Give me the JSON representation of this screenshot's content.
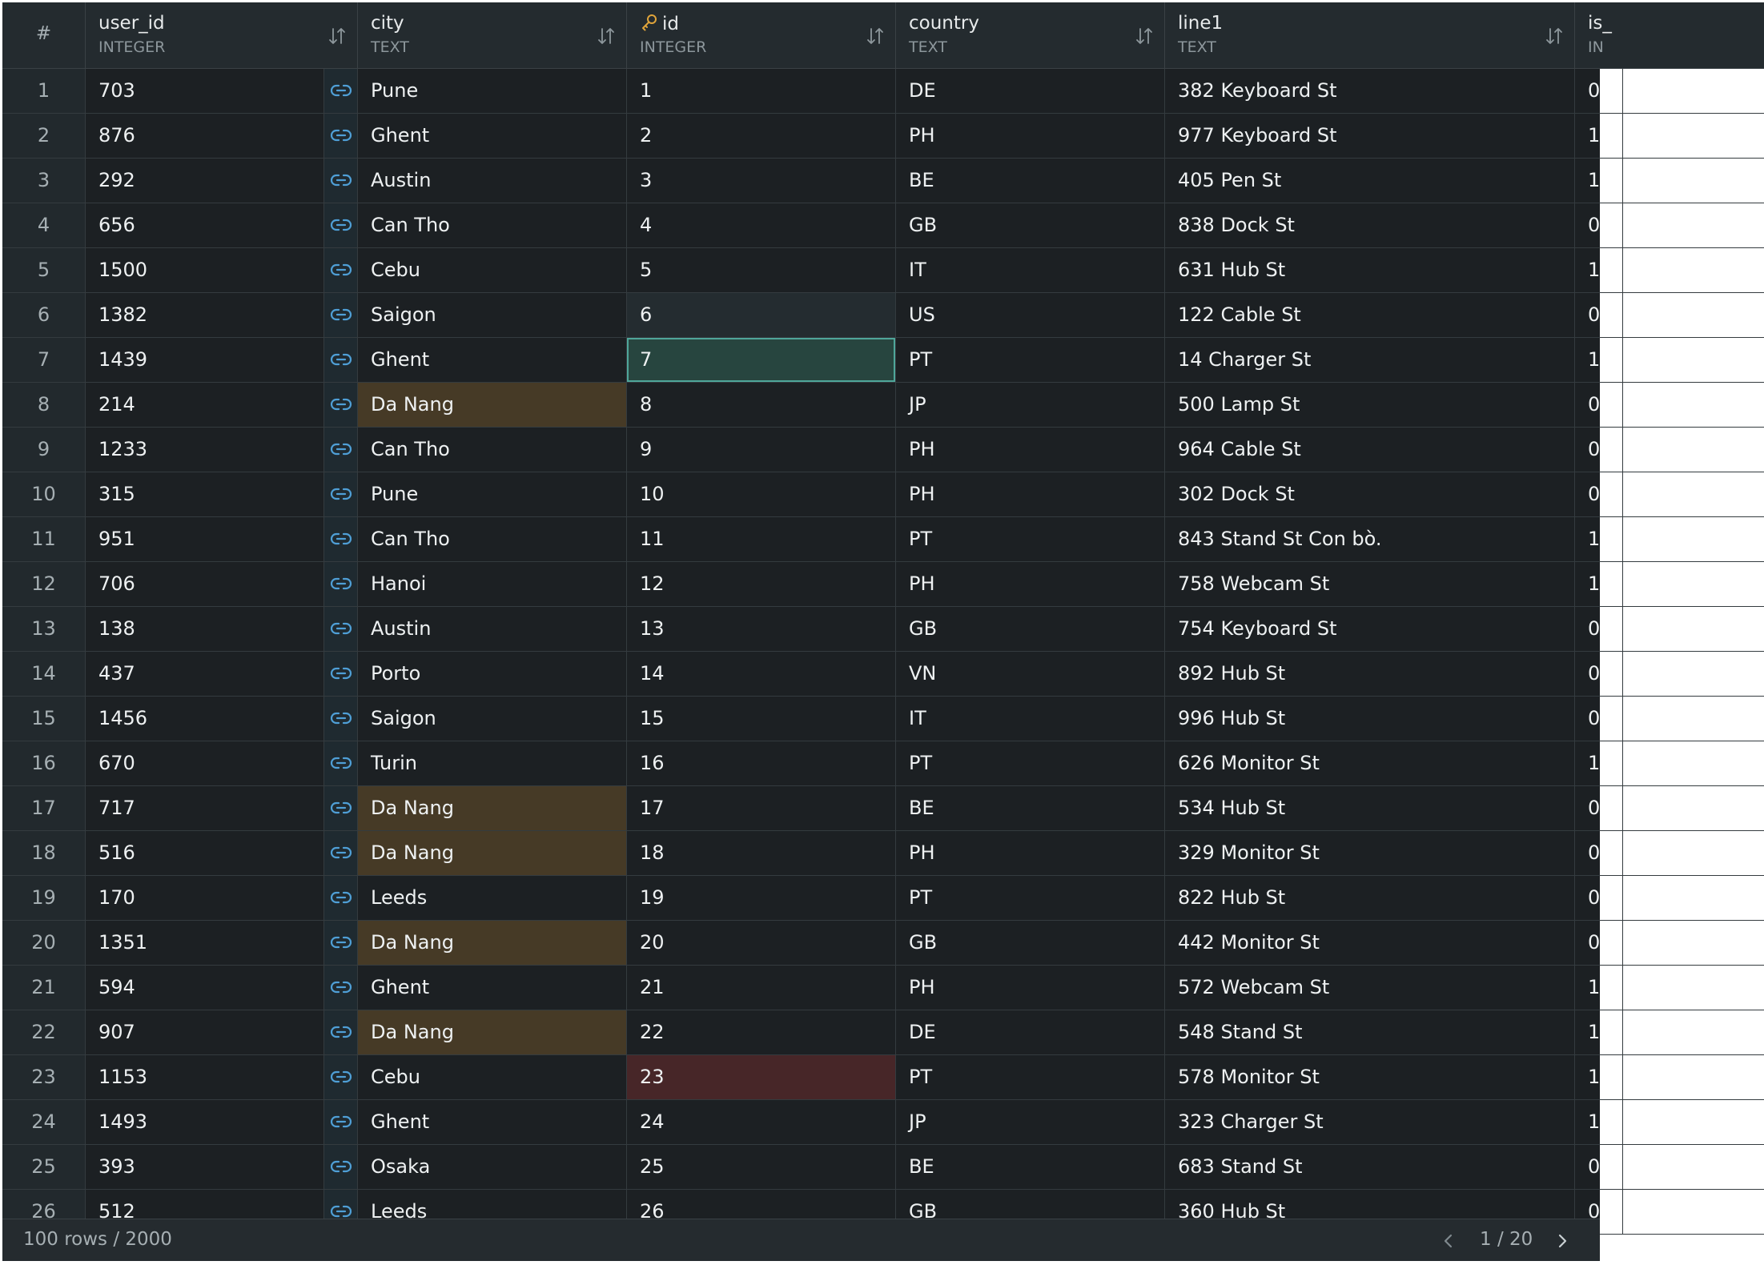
{
  "grid": {
    "row_number_header": "#",
    "columns": [
      {
        "name": "user_id",
        "type": "INTEGER",
        "primary_key": false
      },
      {
        "name": "city",
        "type": "TEXT",
        "primary_key": false
      },
      {
        "name": "id",
        "type": "INTEGER",
        "primary_key": true
      },
      {
        "name": "country",
        "type": "TEXT",
        "primary_key": false
      },
      {
        "name": "line1",
        "type": "TEXT",
        "primary_key": false
      },
      {
        "name": "is_",
        "type": "IN",
        "primary_key": false
      }
    ],
    "rows": [
      {
        "num": "1",
        "user_id": "703",
        "city": "Pune",
        "id": "1",
        "country": "DE",
        "line1": "382 Keyboard St",
        "is": "0"
      },
      {
        "num": "2",
        "user_id": "876",
        "city": "Ghent",
        "id": "2",
        "country": "PH",
        "line1": "977 Keyboard St",
        "is": "1"
      },
      {
        "num": "3",
        "user_id": "292",
        "city": "Austin",
        "id": "3",
        "country": "BE",
        "line1": "405 Pen St",
        "is": "1"
      },
      {
        "num": "4",
        "user_id": "656",
        "city": "Can Tho",
        "id": "4",
        "country": "GB",
        "line1": "838 Dock St",
        "is": "0"
      },
      {
        "num": "5",
        "user_id": "1500",
        "city": "Cebu",
        "id": "5",
        "country": "IT",
        "line1": "631 Hub St",
        "is": "1"
      },
      {
        "num": "6",
        "user_id": "1382",
        "city": "Saigon",
        "id": "6",
        "country": "US",
        "line1": "122 Cable St",
        "is": "0"
      },
      {
        "num": "7",
        "user_id": "1439",
        "city": "Ghent",
        "id": "7",
        "country": "PT",
        "line1": "14 Charger St",
        "is": "1"
      },
      {
        "num": "8",
        "user_id": "214",
        "city": "Da Nang",
        "id": "8",
        "country": "JP",
        "line1": "500 Lamp St",
        "is": "0"
      },
      {
        "num": "9",
        "user_id": "1233",
        "city": "Can Tho",
        "id": "9",
        "country": "PH",
        "line1": "964 Cable St",
        "is": "0"
      },
      {
        "num": "10",
        "user_id": "315",
        "city": "Pune",
        "id": "10",
        "country": "PH",
        "line1": "302 Dock St",
        "is": "0"
      },
      {
        "num": "11",
        "user_id": "951",
        "city": "Can Tho",
        "id": "11",
        "country": "PT",
        "line1": "843 Stand St Con bò.",
        "is": "1"
      },
      {
        "num": "12",
        "user_id": "706",
        "city": "Hanoi",
        "id": "12",
        "country": "PH",
        "line1": "758 Webcam St",
        "is": "1"
      },
      {
        "num": "13",
        "user_id": "138",
        "city": "Austin",
        "id": "13",
        "country": "GB",
        "line1": "754 Keyboard St",
        "is": "0"
      },
      {
        "num": "14",
        "user_id": "437",
        "city": "Porto",
        "id": "14",
        "country": "VN",
        "line1": "892 Hub St",
        "is": "0"
      },
      {
        "num": "15",
        "user_id": "1456",
        "city": "Saigon",
        "id": "15",
        "country": "IT",
        "line1": "996 Hub St",
        "is": "0"
      },
      {
        "num": "16",
        "user_id": "670",
        "city": "Turin",
        "id": "16",
        "country": "PT",
        "line1": "626 Monitor St",
        "is": "1"
      },
      {
        "num": "17",
        "user_id": "717",
        "city": "Da Nang",
        "id": "17",
        "country": "BE",
        "line1": "534 Hub St",
        "is": "0"
      },
      {
        "num": "18",
        "user_id": "516",
        "city": "Da Nang",
        "id": "18",
        "country": "PH",
        "line1": "329 Monitor St",
        "is": "0"
      },
      {
        "num": "19",
        "user_id": "170",
        "city": "Leeds",
        "id": "19",
        "country": "PT",
        "line1": "822 Hub St",
        "is": "0"
      },
      {
        "num": "20",
        "user_id": "1351",
        "city": "Da Nang",
        "id": "20",
        "country": "GB",
        "line1": "442 Monitor St",
        "is": "0"
      },
      {
        "num": "21",
        "user_id": "594",
        "city": "Ghent",
        "id": "21",
        "country": "PH",
        "line1": "572 Webcam St",
        "is": "1"
      },
      {
        "num": "22",
        "user_id": "907",
        "city": "Da Nang",
        "id": "22",
        "country": "DE",
        "line1": "548 Stand St",
        "is": "1"
      },
      {
        "num": "23",
        "user_id": "1153",
        "city": "Cebu",
        "id": "23",
        "country": "PT",
        "line1": "578 Monitor St",
        "is": "1"
      },
      {
        "num": "24",
        "user_id": "1493",
        "city": "Ghent",
        "id": "24",
        "country": "JP",
        "line1": "323 Charger St",
        "is": "1"
      },
      {
        "num": "25",
        "user_id": "393",
        "city": "Osaka",
        "id": "25",
        "country": "BE",
        "line1": "683 Stand St",
        "is": "0"
      },
      {
        "num": "26",
        "user_id": "512",
        "city": "Leeds",
        "id": "26",
        "country": "GB",
        "line1": "360 Hub St",
        "is": "0"
      }
    ],
    "highlights": {
      "city_match_value": "Da Nang",
      "selected_cell": {
        "row": 7,
        "column": "id"
      },
      "soft_cell": {
        "row": 6,
        "column": "id"
      },
      "error_cell": {
        "row": 23,
        "column": "id"
      }
    }
  },
  "footer": {
    "row_count": "100 rows / 2000",
    "page": "1 / 20"
  },
  "icons": {
    "sort": "sort-arrows-icon",
    "primary_key": "key-icon",
    "foreign_link": "link-icon",
    "prev": "chevron-left-icon",
    "next": "chevron-right-icon"
  },
  "colors": {
    "background": "#1c2023",
    "header": "#242b2f",
    "amber_highlight": "#463a26",
    "error_highlight": "#472628",
    "selected_border": "#4fa69a",
    "link_icon": "#4f9fd6",
    "key_icon": "#e0a43a"
  }
}
